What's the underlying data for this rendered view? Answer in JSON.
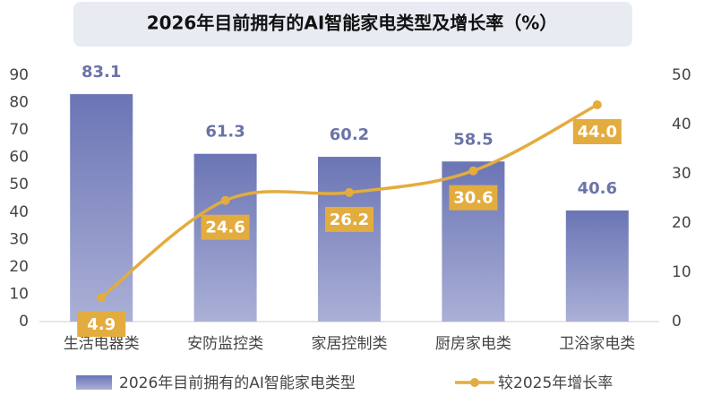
{
  "chart_data": {
    "type": "bar_line",
    "title": "2026年目前拥有的AI智能家电类型及增长率（%）",
    "categories": [
      "生活电器类",
      "安防监控类",
      "家居控制类",
      "厨房家电类",
      "卫浴家电类"
    ],
    "series": [
      {
        "name": "2026年目前拥有的AI智能家电类型",
        "type": "bar",
        "color": "#6b75b5",
        "values": [
          83.1,
          61.3,
          60.2,
          58.5,
          40.6
        ]
      },
      {
        "name": "较2025年增长率",
        "type": "line",
        "axis": "y2",
        "color": "#e3ac3e",
        "values": [
          4.9,
          24.6,
          26.2,
          30.6,
          44.0
        ],
        "value_labels": [
          "4.9",
          "24.6",
          "26.2",
          "30.6",
          "44.0"
        ]
      }
    ],
    "ylim": [
      0,
      90
    ],
    "yticks": [
      0,
      10,
      20,
      30,
      40,
      50,
      60,
      70,
      80,
      90
    ],
    "y2lim": [
      0,
      50
    ],
    "y2ticks": [
      0,
      10,
      20,
      30,
      40,
      50
    ],
    "legend": "bottom"
  }
}
